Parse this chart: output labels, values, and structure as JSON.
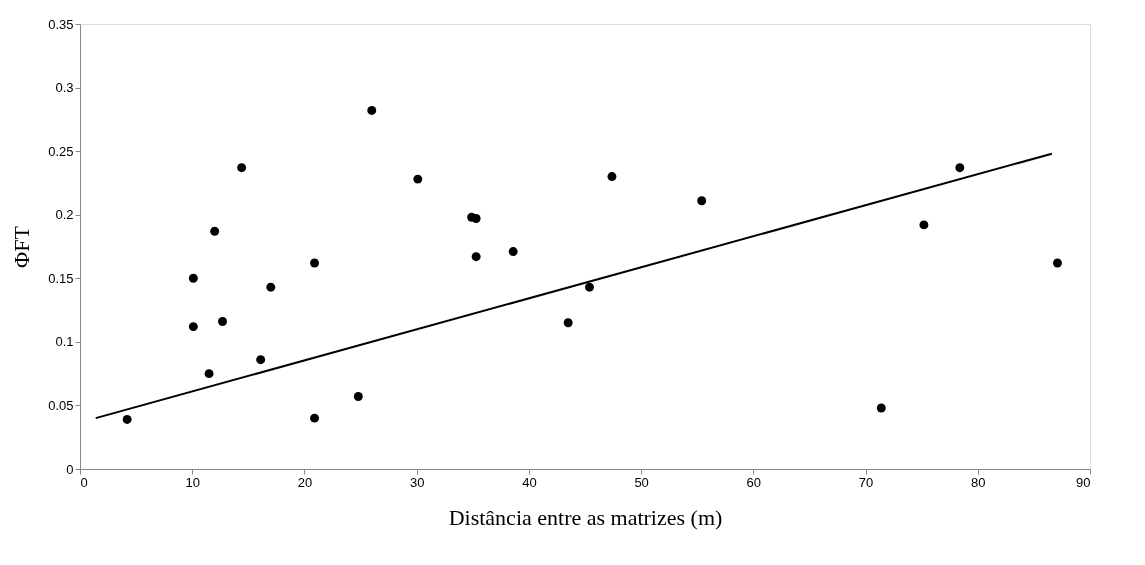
{
  "chart_data": {
    "type": "scatter",
    "xlabel": "Distância entre as matrizes (m)",
    "ylabel": "ΦFT",
    "xlim": [
      0,
      90
    ],
    "xticks": [
      0,
      10,
      20,
      30,
      40,
      50,
      60,
      70,
      80,
      90
    ],
    "ylim": [
      0,
      0.35
    ],
    "yticks": [
      0,
      0.05,
      0.1,
      0.15,
      0.2,
      0.25,
      0.3,
      0.35
    ],
    "grid": false,
    "series": [
      {
        "marker": "circle",
        "color": "#000000",
        "x": [
          4.2,
          10.1,
          10.1,
          11.5,
          12.0,
          12.7,
          14.4,
          16.1,
          17.0,
          20.9,
          20.9,
          24.8,
          26.0,
          30.1,
          34.9,
          35.3,
          35.3,
          38.6,
          43.5,
          45.4,
          47.4,
          55.4,
          71.4,
          75.2,
          78.4,
          87.1
        ],
        "values": [
          0.039,
          0.15,
          0.112,
          0.075,
          0.187,
          0.116,
          0.237,
          0.086,
          0.143,
          0.162,
          0.04,
          0.057,
          0.282,
          0.228,
          0.198,
          0.197,
          0.167,
          0.171,
          0.115,
          0.143,
          0.23,
          0.211,
          0.048,
          0.192,
          0.237,
          0.162
        ]
      },
      {
        "type": "line",
        "color": "#000000",
        "line_style": "solid",
        "x": [
          1.4,
          86.6
        ],
        "values": [
          0.04,
          0.248
        ]
      }
    ]
  }
}
